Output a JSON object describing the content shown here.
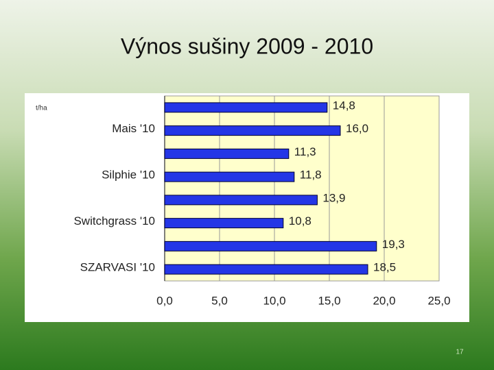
{
  "chart_data": {
    "type": "bar",
    "orientation": "horizontal",
    "title": "Výnos sušiny 2009 - 2010",
    "unit_label": "t/ha",
    "categories": [
      null,
      "Mais '10",
      null,
      "Silphie '10",
      null,
      "Switchgrass '10",
      null,
      "SZARVASI '10"
    ],
    "values": [
      14.8,
      16.0,
      11.3,
      11.8,
      13.9,
      10.8,
      19.3,
      18.5
    ],
    "value_labels": [
      "14,8",
      "16,0",
      "11,3",
      "11,8",
      "13,9",
      "10,8",
      "19,3",
      "18,5"
    ],
    "color": "#2436e6",
    "xlim": [
      0,
      25
    ],
    "xticks": [
      {
        "value": 0,
        "label": "0,0"
      },
      {
        "value": 5,
        "label": "5,0"
      },
      {
        "value": 10,
        "label": "10,0"
      },
      {
        "value": 15,
        "label": "15,0"
      },
      {
        "value": 20,
        "label": "20,0"
      },
      {
        "value": 25,
        "label": "25,0"
      }
    ],
    "grid": true
  },
  "page_number": "17"
}
